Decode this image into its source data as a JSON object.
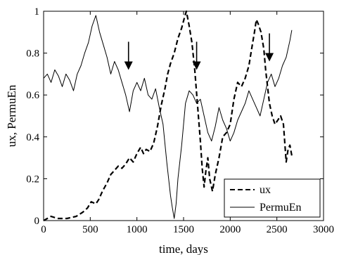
{
  "chart_data": {
    "type": "line",
    "title": "",
    "xlabel": "time, days",
    "ylabel": "ux, PermuEn",
    "xlim": [
      0,
      3000
    ],
    "ylim": [
      0,
      1
    ],
    "xticks": [
      "0",
      "500",
      "1000",
      "1500",
      "2000",
      "2500",
      "3000"
    ],
    "yticks": [
      "0",
      "0.2",
      "0.4",
      "0.6",
      "0.8",
      "1"
    ],
    "grid": false,
    "legend_position": "bottom-right",
    "series": [
      {
        "name": "ux",
        "style": "dashed",
        "color": "#000000",
        "x": [
          0,
          40,
          80,
          150,
          250,
          350,
          420,
          470,
          510,
          560,
          590,
          630,
          680,
          720,
          760,
          800,
          840,
          880,
          920,
          960,
          1000,
          1040,
          1070,
          1100,
          1140,
          1180,
          1220,
          1260,
          1300,
          1330,
          1360,
          1400,
          1440,
          1480,
          1510,
          1530,
          1560,
          1590,
          1620,
          1650,
          1680,
          1700,
          1720,
          1740,
          1760,
          1780,
          1810,
          1840,
          1880,
          1920,
          1960,
          2000,
          2040,
          2080,
          2120,
          2160,
          2200,
          2230,
          2260,
          2280,
          2300,
          2330,
          2360,
          2380,
          2400,
          2420,
          2450,
          2480,
          2510,
          2540,
          2570,
          2600,
          2620,
          2640,
          2660
        ],
        "y": [
          0.0,
          0.01,
          0.02,
          0.01,
          0.01,
          0.02,
          0.04,
          0.06,
          0.09,
          0.08,
          0.1,
          0.14,
          0.18,
          0.22,
          0.24,
          0.26,
          0.25,
          0.27,
          0.3,
          0.28,
          0.32,
          0.35,
          0.32,
          0.34,
          0.33,
          0.37,
          0.45,
          0.55,
          0.63,
          0.7,
          0.75,
          0.8,
          0.87,
          0.92,
          0.97,
          1.0,
          0.93,
          0.85,
          0.72,
          0.55,
          0.38,
          0.25,
          0.16,
          0.24,
          0.3,
          0.2,
          0.14,
          0.22,
          0.3,
          0.4,
          0.42,
          0.46,
          0.58,
          0.66,
          0.64,
          0.68,
          0.74,
          0.82,
          0.9,
          0.96,
          0.94,
          0.9,
          0.82,
          0.72,
          0.64,
          0.56,
          0.5,
          0.46,
          0.48,
          0.5,
          0.46,
          0.28,
          0.34,
          0.36,
          0.31
        ]
      },
      {
        "name": "PermuEn",
        "style": "solid",
        "color": "#000000",
        "x": [
          0,
          40,
          80,
          120,
          160,
          200,
          240,
          280,
          320,
          360,
          400,
          440,
          480,
          520,
          560,
          600,
          640,
          680,
          720,
          760,
          800,
          840,
          880,
          920,
          960,
          1000,
          1040,
          1080,
          1120,
          1160,
          1200,
          1240,
          1280,
          1320,
          1360,
          1380,
          1400,
          1420,
          1440,
          1480,
          1520,
          1560,
          1600,
          1640,
          1680,
          1720,
          1760,
          1800,
          1840,
          1880,
          1920,
          1960,
          2000,
          2040,
          2080,
          2120,
          2160,
          2200,
          2240,
          2280,
          2320,
          2360,
          2400,
          2440,
          2480,
          2520,
          2560,
          2600,
          2640,
          2660
        ],
        "y": [
          0.68,
          0.7,
          0.66,
          0.72,
          0.69,
          0.64,
          0.7,
          0.67,
          0.62,
          0.7,
          0.74,
          0.8,
          0.85,
          0.93,
          0.98,
          0.9,
          0.84,
          0.78,
          0.7,
          0.76,
          0.72,
          0.66,
          0.6,
          0.52,
          0.62,
          0.66,
          0.62,
          0.68,
          0.6,
          0.58,
          0.63,
          0.54,
          0.46,
          0.28,
          0.12,
          0.06,
          0.01,
          0.08,
          0.2,
          0.36,
          0.56,
          0.62,
          0.6,
          0.56,
          0.58,
          0.5,
          0.42,
          0.38,
          0.45,
          0.54,
          0.48,
          0.44,
          0.38,
          0.42,
          0.48,
          0.52,
          0.56,
          0.62,
          0.58,
          0.54,
          0.5,
          0.58,
          0.66,
          0.7,
          0.64,
          0.68,
          0.74,
          0.78,
          0.86,
          0.91
        ]
      }
    ],
    "annotations": [
      {
        "type": "arrow-down",
        "x": 910,
        "y": 0.72
      },
      {
        "type": "arrow-down",
        "x": 1640,
        "y": 0.72
      },
      {
        "type": "arrow-down",
        "x": 2420,
        "y": 0.76
      }
    ]
  }
}
